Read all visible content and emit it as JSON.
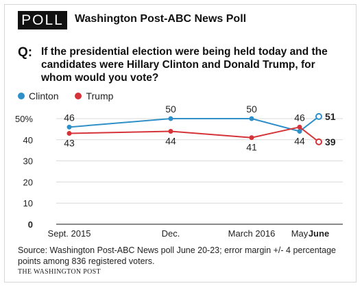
{
  "header": {
    "badge": "POLL",
    "title": "Washington Post-ABC News Poll"
  },
  "question": {
    "label": "Q:",
    "text": "If the presidential election were being held today and the candidates were Hillary Clinton and Donald Trump, for whom would you vote?"
  },
  "legend": {
    "items": [
      {
        "label": "Clinton",
        "color": "#2f8fc8"
      },
      {
        "label": "Trump",
        "color": "#d63339"
      }
    ]
  },
  "chart_data": {
    "type": "line",
    "categories": [
      "Sept. 2015",
      "Dec.",
      "March 2016",
      "May",
      "June"
    ],
    "series": [
      {
        "name": "Clinton",
        "color": "#2f8fc8",
        "values": [
          46,
          50,
          50,
          44,
          51
        ],
        "labels": [
          "46",
          "50",
          "50",
          "44",
          "51"
        ]
      },
      {
        "name": "Trump",
        "color": "#d63339",
        "values": [
          43,
          44,
          41,
          46,
          39
        ],
        "labels": [
          "43",
          "44",
          "41",
          "46",
          "39"
        ]
      }
    ],
    "yticks": [
      "0",
      "10",
      "20",
      "30",
      "40",
      "50%"
    ],
    "ylim": [
      0,
      50
    ],
    "grid": true
  },
  "footer": {
    "source": "Source: Washington Post-ABC News poll June 20-23; error margin +/- 4 percentage points among 836 registered voters.",
    "credit": "THE WASHINGTON POST"
  }
}
